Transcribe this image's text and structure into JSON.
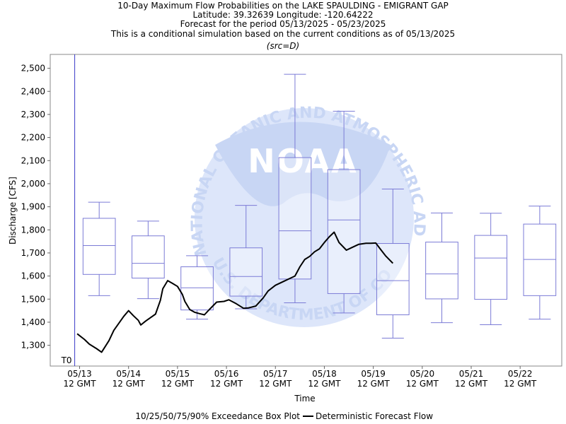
{
  "chart_data": {
    "type": "box",
    "title_lines": [
      "10-Day Maximum Flow Probabilities on the LAKE SPAULDING - EMIGRANT GAP",
      "Latitude: 39.32639 Longitude: -120.64222",
      "Forecast for the period 05/13/2025 - 05/23/2025",
      "This is a conditional simulation based on the current conditions as of 05/13/2025"
    ],
    "subtitle": "(src=D)",
    "xlabel": "Time",
    "ylabel": "Discharge [CFS]",
    "ylim": [
      1210,
      2560
    ],
    "y_ticks": [
      1300,
      1400,
      1500,
      1600,
      1700,
      1800,
      1900,
      2000,
      2100,
      2200,
      2300,
      2400,
      2500
    ],
    "y_tick_labels": [
      "1,300",
      "1,400",
      "1,500",
      "1,600",
      "1,700",
      "1,800",
      "1,900",
      "2,000",
      "2,100",
      "2,200",
      "2,300",
      "2,400",
      "2,500"
    ],
    "x_range_days": [
      -0.6,
      9.85
    ],
    "x_ticks": [
      {
        "day": 0,
        "date": "05/13",
        "time": "12 GMT"
      },
      {
        "day": 1,
        "date": "05/14",
        "time": "12 GMT"
      },
      {
        "day": 2,
        "date": "05/15",
        "time": "12 GMT"
      },
      {
        "day": 3,
        "date": "05/16",
        "time": "12 GMT"
      },
      {
        "day": 4,
        "date": "05/17",
        "time": "12 GMT"
      },
      {
        "day": 5,
        "date": "05/18",
        "time": "12 GMT"
      },
      {
        "day": 6,
        "date": "05/19",
        "time": "12 GMT"
      },
      {
        "day": 7,
        "date": "05/20",
        "time": "12 GMT"
      },
      {
        "day": 8,
        "date": "05/21",
        "time": "12 GMT"
      },
      {
        "day": 9,
        "date": "05/22",
        "time": "12 GMT"
      }
    ],
    "t0_marker": {
      "day": -0.1,
      "label": "T0"
    },
    "boxes": [
      {
        "center_day": 0.4,
        "p10": 1515,
        "p25": 1607,
        "p50": 1732,
        "p75": 1850,
        "p90": 1920
      },
      {
        "center_day": 1.4,
        "p10": 1502,
        "p25": 1591,
        "p50": 1655,
        "p75": 1774,
        "p90": 1838
      },
      {
        "center_day": 2.4,
        "p10": 1413,
        "p25": 1453,
        "p50": 1549,
        "p75": 1640,
        "p90": 1688
      },
      {
        "center_day": 3.4,
        "p10": 1458,
        "p25": 1513,
        "p50": 1598,
        "p75": 1722,
        "p90": 1906
      },
      {
        "center_day": 4.4,
        "p10": 1484,
        "p25": 1587,
        "p50": 1796,
        "p75": 2113,
        "p90": 2474
      },
      {
        "center_day": 5.4,
        "p10": 1440,
        "p25": 1524,
        "p50": 1843,
        "p75": 2061,
        "p90": 2314
      },
      {
        "center_day": 6.4,
        "p10": 1331,
        "p25": 1432,
        "p50": 1580,
        "p75": 1741,
        "p90": 1977
      },
      {
        "center_day": 7.4,
        "p10": 1398,
        "p25": 1501,
        "p50": 1609,
        "p75": 1747,
        "p90": 1873
      },
      {
        "center_day": 8.4,
        "p10": 1389,
        "p25": 1499,
        "p50": 1678,
        "p75": 1776,
        "p90": 1872
      },
      {
        "center_day": 9.4,
        "p10": 1413,
        "p25": 1515,
        "p50": 1672,
        "p75": 1825,
        "p90": 1903
      }
    ],
    "deterministic": {
      "name": "Deterministic Forecast Flow",
      "points": [
        [
          -0.05,
          1350
        ],
        [
          0.1,
          1325
        ],
        [
          0.2,
          1305
        ],
        [
          0.35,
          1285
        ],
        [
          0.45,
          1270
        ],
        [
          0.6,
          1320
        ],
        [
          0.7,
          1365
        ],
        [
          0.8,
          1395
        ],
        [
          0.9,
          1425
        ],
        [
          1.0,
          1450
        ],
        [
          1.1,
          1428
        ],
        [
          1.2,
          1408
        ],
        [
          1.25,
          1388
        ],
        [
          1.35,
          1405
        ],
        [
          1.45,
          1420
        ],
        [
          1.55,
          1435
        ],
        [
          1.65,
          1495
        ],
        [
          1.7,
          1545
        ],
        [
          1.8,
          1580
        ],
        [
          1.9,
          1568
        ],
        [
          2.0,
          1555
        ],
        [
          2.1,
          1520
        ],
        [
          2.15,
          1490
        ],
        [
          2.25,
          1455
        ],
        [
          2.35,
          1443
        ],
        [
          2.45,
          1437
        ],
        [
          2.55,
          1432
        ],
        [
          2.65,
          1455
        ],
        [
          2.8,
          1487
        ],
        [
          2.95,
          1490
        ],
        [
          3.05,
          1497
        ],
        [
          3.2,
          1480
        ],
        [
          3.35,
          1460
        ],
        [
          3.45,
          1462
        ],
        [
          3.6,
          1470
        ],
        [
          3.75,
          1505
        ],
        [
          3.85,
          1535
        ],
        [
          4.0,
          1560
        ],
        [
          4.15,
          1575
        ],
        [
          4.3,
          1590
        ],
        [
          4.4,
          1600
        ],
        [
          4.5,
          1640
        ],
        [
          4.6,
          1672
        ],
        [
          4.7,
          1685
        ],
        [
          4.8,
          1705
        ],
        [
          4.9,
          1718
        ],
        [
          5.0,
          1745
        ],
        [
          5.1,
          1770
        ],
        [
          5.2,
          1790
        ],
        [
          5.3,
          1745
        ],
        [
          5.45,
          1712
        ],
        [
          5.55,
          1722
        ],
        [
          5.7,
          1737
        ],
        [
          5.85,
          1742
        ],
        [
          5.95,
          1742
        ],
        [
          6.05,
          1743
        ],
        [
          6.15,
          1715
        ],
        [
          6.25,
          1688
        ],
        [
          6.4,
          1655
        ]
      ]
    },
    "legend": [
      {
        "label": "10/25/50/75/90% Exceedance Box Plot"
      },
      {
        "label": "Deterministic Forecast Flow"
      }
    ],
    "colors": {
      "box": "#7b7bd6",
      "deterministic": "#000000",
      "t0": "#3a3ac8",
      "watermark_light": "#dde6fa",
      "watermark_mid": "#c8d6f4"
    },
    "watermark": {
      "ring_text": "NATIONAL OCEANIC AND ATMOSPHERIC ADMINISTRATION",
      "bottom_text": "U.S. DEPARTMENT OF COMMERCE",
      "logo_text": "NOAA"
    }
  }
}
